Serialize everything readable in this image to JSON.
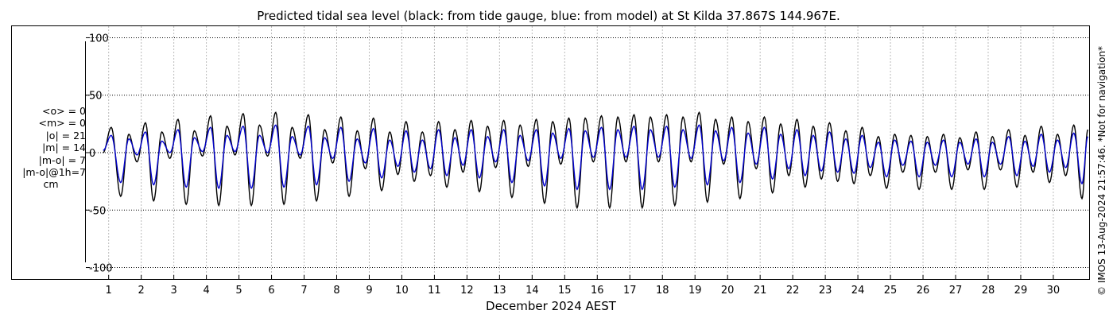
{
  "title": "Predicted tidal sea level (black: from tide gauge, blue: from model) at St Kilda 37.867S 144.967E.",
  "watermark": "© IMOS 13-Aug-2024 21:57:46. *Not for navigation*",
  "stats": [
    "<o> = 0",
    "<m> = 0",
    "|o| = 21",
    "|m| = 14",
    "|m-o| = 7",
    "|m-o|@1h=7"
  ],
  "unit": "cm",
  "chart_data": {
    "type": "line",
    "title": "Predicted tidal sea level (black: from tide gauge, blue: from model) at St Kilda 37.867S 144.967E.",
    "xlabel": "December 2024 AEST",
    "ylabel": "",
    "xlim": [
      0.3,
      31.1
    ],
    "ylim": [
      -110,
      110
    ],
    "yticks": [
      -100,
      -50,
      0,
      50,
      100
    ],
    "xticks": [
      1,
      2,
      3,
      4,
      5,
      6,
      7,
      8,
      9,
      10,
      11,
      12,
      13,
      14,
      15,
      16,
      17,
      18,
      19,
      20,
      21,
      22,
      23,
      24,
      25,
      26,
      27,
      28,
      29,
      30
    ],
    "grid": true,
    "legend": "none",
    "x_unit": "day of December 2024",
    "series": [
      {
        "name": "from tide gauge",
        "color": "#000000",
        "x": [
          0.83,
          1.08,
          1.37,
          1.62,
          1.87,
          2.13,
          2.38,
          2.63,
          2.88,
          3.13,
          3.38,
          3.63,
          3.88,
          4.13,
          4.38,
          4.63,
          4.88,
          5.13,
          5.38,
          5.63,
          5.88,
          6.13,
          6.38,
          6.63,
          6.88,
          7.13,
          7.38,
          7.63,
          7.88,
          8.13,
          8.38,
          8.63,
          8.88,
          9.13,
          9.38,
          9.63,
          9.88,
          10.13,
          10.38,
          10.63,
          10.88,
          11.13,
          11.38,
          11.63,
          11.88,
          12.13,
          12.38,
          12.63,
          12.88,
          13.13,
          13.38,
          13.63,
          13.88,
          14.13,
          14.38,
          14.63,
          14.88,
          15.13,
          15.38,
          15.63,
          15.88,
          16.13,
          16.38,
          16.63,
          16.88,
          17.13,
          17.38,
          17.63,
          17.88,
          18.13,
          18.38,
          18.63,
          18.88,
          19.13,
          19.38,
          19.63,
          19.88,
          20.13,
          20.38,
          20.63,
          20.88,
          21.13,
          21.38,
          21.63,
          21.88,
          22.13,
          22.38,
          22.63,
          22.88,
          23.13,
          23.38,
          23.63,
          23.88,
          24.13,
          24.38,
          24.63,
          24.88,
          25.13,
          25.38,
          25.63,
          25.88,
          26.13,
          26.38,
          26.63,
          26.88,
          27.13,
          27.38,
          27.63,
          27.88,
          28.13,
          28.38,
          28.63,
          28.88,
          29.13,
          29.38,
          29.63,
          29.88,
          30.13,
          30.38,
          30.63,
          30.88,
          31.06
        ],
        "y": [
          0,
          22,
          -38,
          16,
          -8,
          26,
          -42,
          18,
          -5,
          29,
          -45,
          19,
          -3,
          32,
          -46,
          23,
          -2,
          34,
          -46,
          24,
          -3,
          35,
          -45,
          22,
          -5,
          33,
          -42,
          20,
          -9,
          31,
          -38,
          19,
          -14,
          30,
          -33,
          18,
          -19,
          27,
          -25,
          18,
          -20,
          27,
          -30,
          20,
          -17,
          28,
          -34,
          23,
          -13,
          28,
          -39,
          24,
          -12,
          29,
          -44,
          27,
          -10,
          30,
          -48,
          30,
          -8,
          32,
          -48,
          31,
          -8,
          33,
          -48,
          31,
          -8,
          33,
          -46,
          31,
          -8,
          35,
          -43,
          29,
          -10,
          31,
          -40,
          27,
          -14,
          31,
          -35,
          25,
          -20,
          29,
          -30,
          23,
          -23,
          26,
          -25,
          19,
          -27,
          22,
          -20,
          14,
          -31,
          16,
          -17,
          15,
          -32,
          14,
          -17,
          16,
          -32,
          13,
          -15,
          18,
          -32,
          14,
          -15,
          20,
          -30,
          15,
          -17,
          23,
          -26,
          16,
          -20,
          24,
          -40,
          20
        ]
      },
      {
        "name": "from model",
        "color": "#0000cc",
        "x": [
          0.83,
          1.08,
          1.37,
          1.62,
          1.87,
          2.13,
          2.38,
          2.63,
          2.88,
          3.13,
          3.38,
          3.63,
          3.88,
          4.13,
          4.38,
          4.63,
          4.88,
          5.13,
          5.38,
          5.63,
          5.88,
          6.13,
          6.38,
          6.63,
          6.88,
          7.13,
          7.38,
          7.63,
          7.88,
          8.13,
          8.38,
          8.63,
          8.88,
          9.13,
          9.38,
          9.63,
          9.88,
          10.13,
          10.38,
          10.63,
          10.88,
          11.13,
          11.38,
          11.63,
          11.88,
          12.13,
          12.38,
          12.63,
          12.88,
          13.13,
          13.38,
          13.63,
          13.88,
          14.13,
          14.38,
          14.63,
          14.88,
          15.13,
          15.38,
          15.63,
          15.88,
          16.13,
          16.38,
          16.63,
          16.88,
          17.13,
          17.38,
          17.63,
          17.88,
          18.13,
          18.38,
          18.63,
          18.88,
          19.13,
          19.38,
          19.63,
          19.88,
          20.13,
          20.38,
          20.63,
          20.88,
          21.13,
          21.38,
          21.63,
          21.88,
          22.13,
          22.38,
          22.63,
          22.88,
          23.13,
          23.38,
          23.63,
          23.88,
          24.13,
          24.38,
          24.63,
          24.88,
          25.13,
          25.38,
          25.63,
          25.88,
          26.13,
          26.38,
          26.63,
          26.88,
          27.13,
          27.38,
          27.63,
          27.88,
          28.13,
          28.38,
          28.63,
          28.88,
          29.13,
          29.38,
          29.63,
          29.88,
          30.13,
          30.38,
          30.63,
          30.88,
          31.06
        ],
        "y": [
          2,
          15,
          -26,
          12,
          -2,
          18,
          -28,
          10,
          0,
          20,
          -30,
          13,
          1,
          22,
          -31,
          15,
          1,
          23,
          -31,
          15,
          0,
          24,
          -30,
          14,
          -2,
          23,
          -28,
          13,
          -5,
          22,
          -25,
          12,
          -9,
          21,
          -22,
          11,
          -12,
          19,
          -17,
          11,
          -14,
          20,
          -20,
          13,
          -11,
          20,
          -22,
          14,
          -8,
          20,
          -26,
          15,
          -7,
          20,
          -29,
          17,
          -5,
          21,
          -32,
          19,
          -4,
          22,
          -32,
          20,
          -4,
          23,
          -32,
          20,
          -4,
          23,
          -30,
          20,
          -5,
          24,
          -28,
          19,
          -7,
          22,
          -26,
          17,
          -10,
          22,
          -23,
          16,
          -14,
          20,
          -20,
          15,
          -16,
          18,
          -17,
          12,
          -18,
          15,
          -13,
          9,
          -21,
          11,
          -11,
          10,
          -21,
          9,
          -11,
          11,
          -21,
          9,
          -10,
          12,
          -21,
          9,
          -10,
          14,
          -20,
          10,
          -12,
          16,
          -17,
          11,
          -13,
          17,
          -27,
          14
        ]
      }
    ]
  }
}
